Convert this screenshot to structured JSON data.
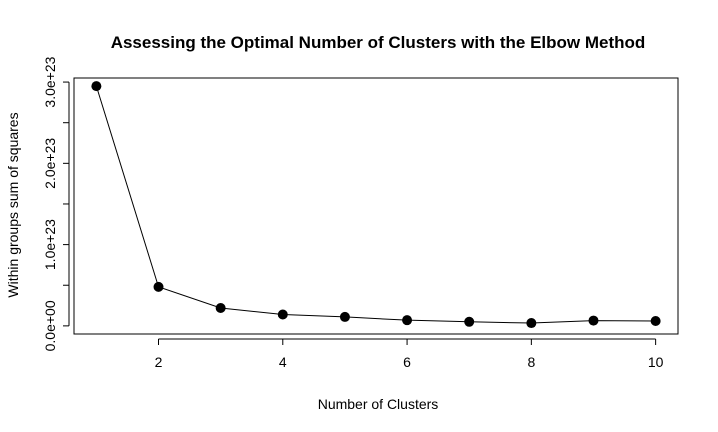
{
  "chart_data": {
    "type": "line",
    "title": "Assessing the Optimal Number of Clusters with the Elbow Method",
    "xlabel": "Number of Clusters",
    "ylabel": "Within groups sum of squares",
    "x": [
      1,
      2,
      3,
      4,
      5,
      6,
      7,
      8,
      9,
      10
    ],
    "series": [
      {
        "name": "Within groups sum of squares",
        "values": [
          2.95e+23,
          4.8e+22,
          2.2e+22,
          1.4e+22,
          1.1e+22,
          7e+21,
          5e+21,
          3.5e+21,
          6.5e+21,
          6e+21
        ]
      }
    ],
    "xlim": [
      0.64,
      10.36
    ],
    "ylim": [
      -1e+22,
      3.05e+23
    ],
    "x_ticks": [
      2,
      4,
      6,
      8,
      10
    ],
    "x_tick_labels": [
      "2",
      "4",
      "6",
      "8",
      "10"
    ],
    "y_ticks": [
      0,
      5e+22,
      1e+23,
      1.5e+23,
      2e+23,
      2.5e+23,
      3e+23
    ],
    "y_tick_labels": [
      "0.0e+00",
      "",
      "1.0e+23",
      "",
      "2.0e+23",
      "",
      "3.0e+23"
    ],
    "grid": false,
    "marker": "filled-circle",
    "line_color": "#000000",
    "marker_color": "#000000"
  }
}
